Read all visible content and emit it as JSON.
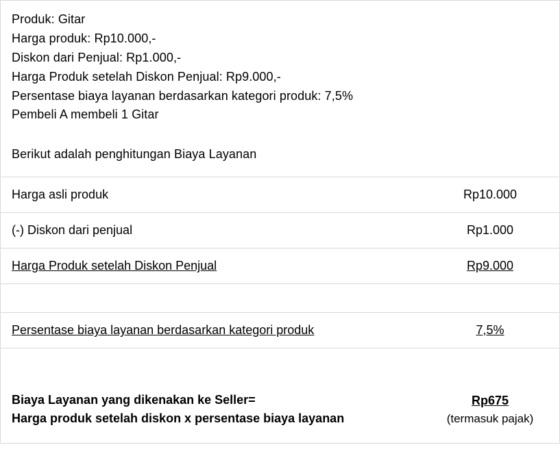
{
  "intro": {
    "lines": [
      "Produk: Gitar",
      "Harga produk: Rp10.000,-",
      "Diskon dari  Penjual: Rp1.000,-",
      "Harga Produk setelah Diskon Penjual: Rp9.000,-",
      "Persentase biaya layanan berdasarkan kategori produk: 7,5%",
      "Pembeli A membeli 1 Gitar"
    ],
    "summary": "Berikut adalah penghitungan Biaya Layanan"
  },
  "table": {
    "rows": [
      {
        "label": "Harga asli produk",
        "value": "Rp10.000",
        "underline": false
      },
      {
        "label": "(-) Diskon dari penjual",
        "value": "Rp1.000",
        "underline": false
      },
      {
        "label": "Harga Produk setelah Diskon Penjual",
        "value": "Rp9.000",
        "underline": true
      },
      {
        "spacer": true
      },
      {
        "label": "Persentase biaya layanan berdasarkan kategori produk",
        "value": "7,5%",
        "underline": true
      },
      {
        "spacer": true
      }
    ],
    "final": {
      "label_l1": "Biaya Layanan yang dikenakan ke Seller=",
      "label_l2": "Harga produk setelah diskon x persentase biaya layanan",
      "amount": "Rp675",
      "note": "(termasuk pajak)"
    }
  },
  "colors": {
    "border": "#d8d8d8",
    "text": "#000000",
    "background": "#ffffff"
  }
}
